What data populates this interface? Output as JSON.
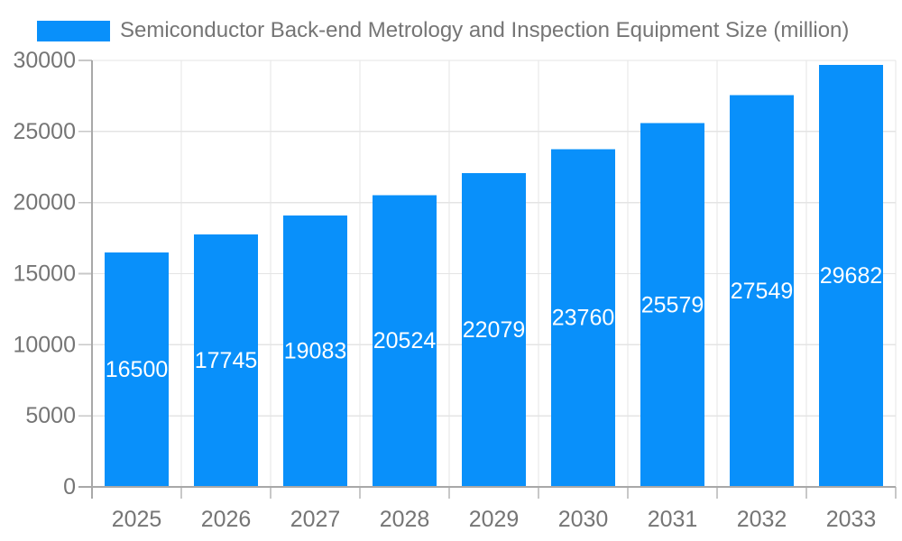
{
  "chart_data": {
    "type": "bar",
    "title": "Semiconductor Back-end Metrology and Inspection Equipment Size (million)",
    "categories": [
      "2025",
      "2026",
      "2027",
      "2028",
      "2029",
      "2030",
      "2031",
      "2032",
      "2033"
    ],
    "values": [
      16500,
      17745,
      19083,
      20524,
      22079,
      23760,
      25579,
      27549,
      29682
    ],
    "xlabel": "",
    "ylabel": "",
    "ylim": [
      0,
      30000
    ],
    "yticks": [
      0,
      5000,
      10000,
      15000,
      20000,
      25000,
      30000
    ],
    "grid": "horizontal-and-vertical",
    "legend_position": "top-left",
    "value_labels": "inside-center-white",
    "bar_color": "#0990FA",
    "value_label_color": "#FFFFFF",
    "axis_label_color": "#757575",
    "grid_color": "#E4E4E4",
    "tick_color": "#C8C8C8",
    "axis_line_color": "#A8A8A8",
    "background_color": "#FFFFFF"
  }
}
